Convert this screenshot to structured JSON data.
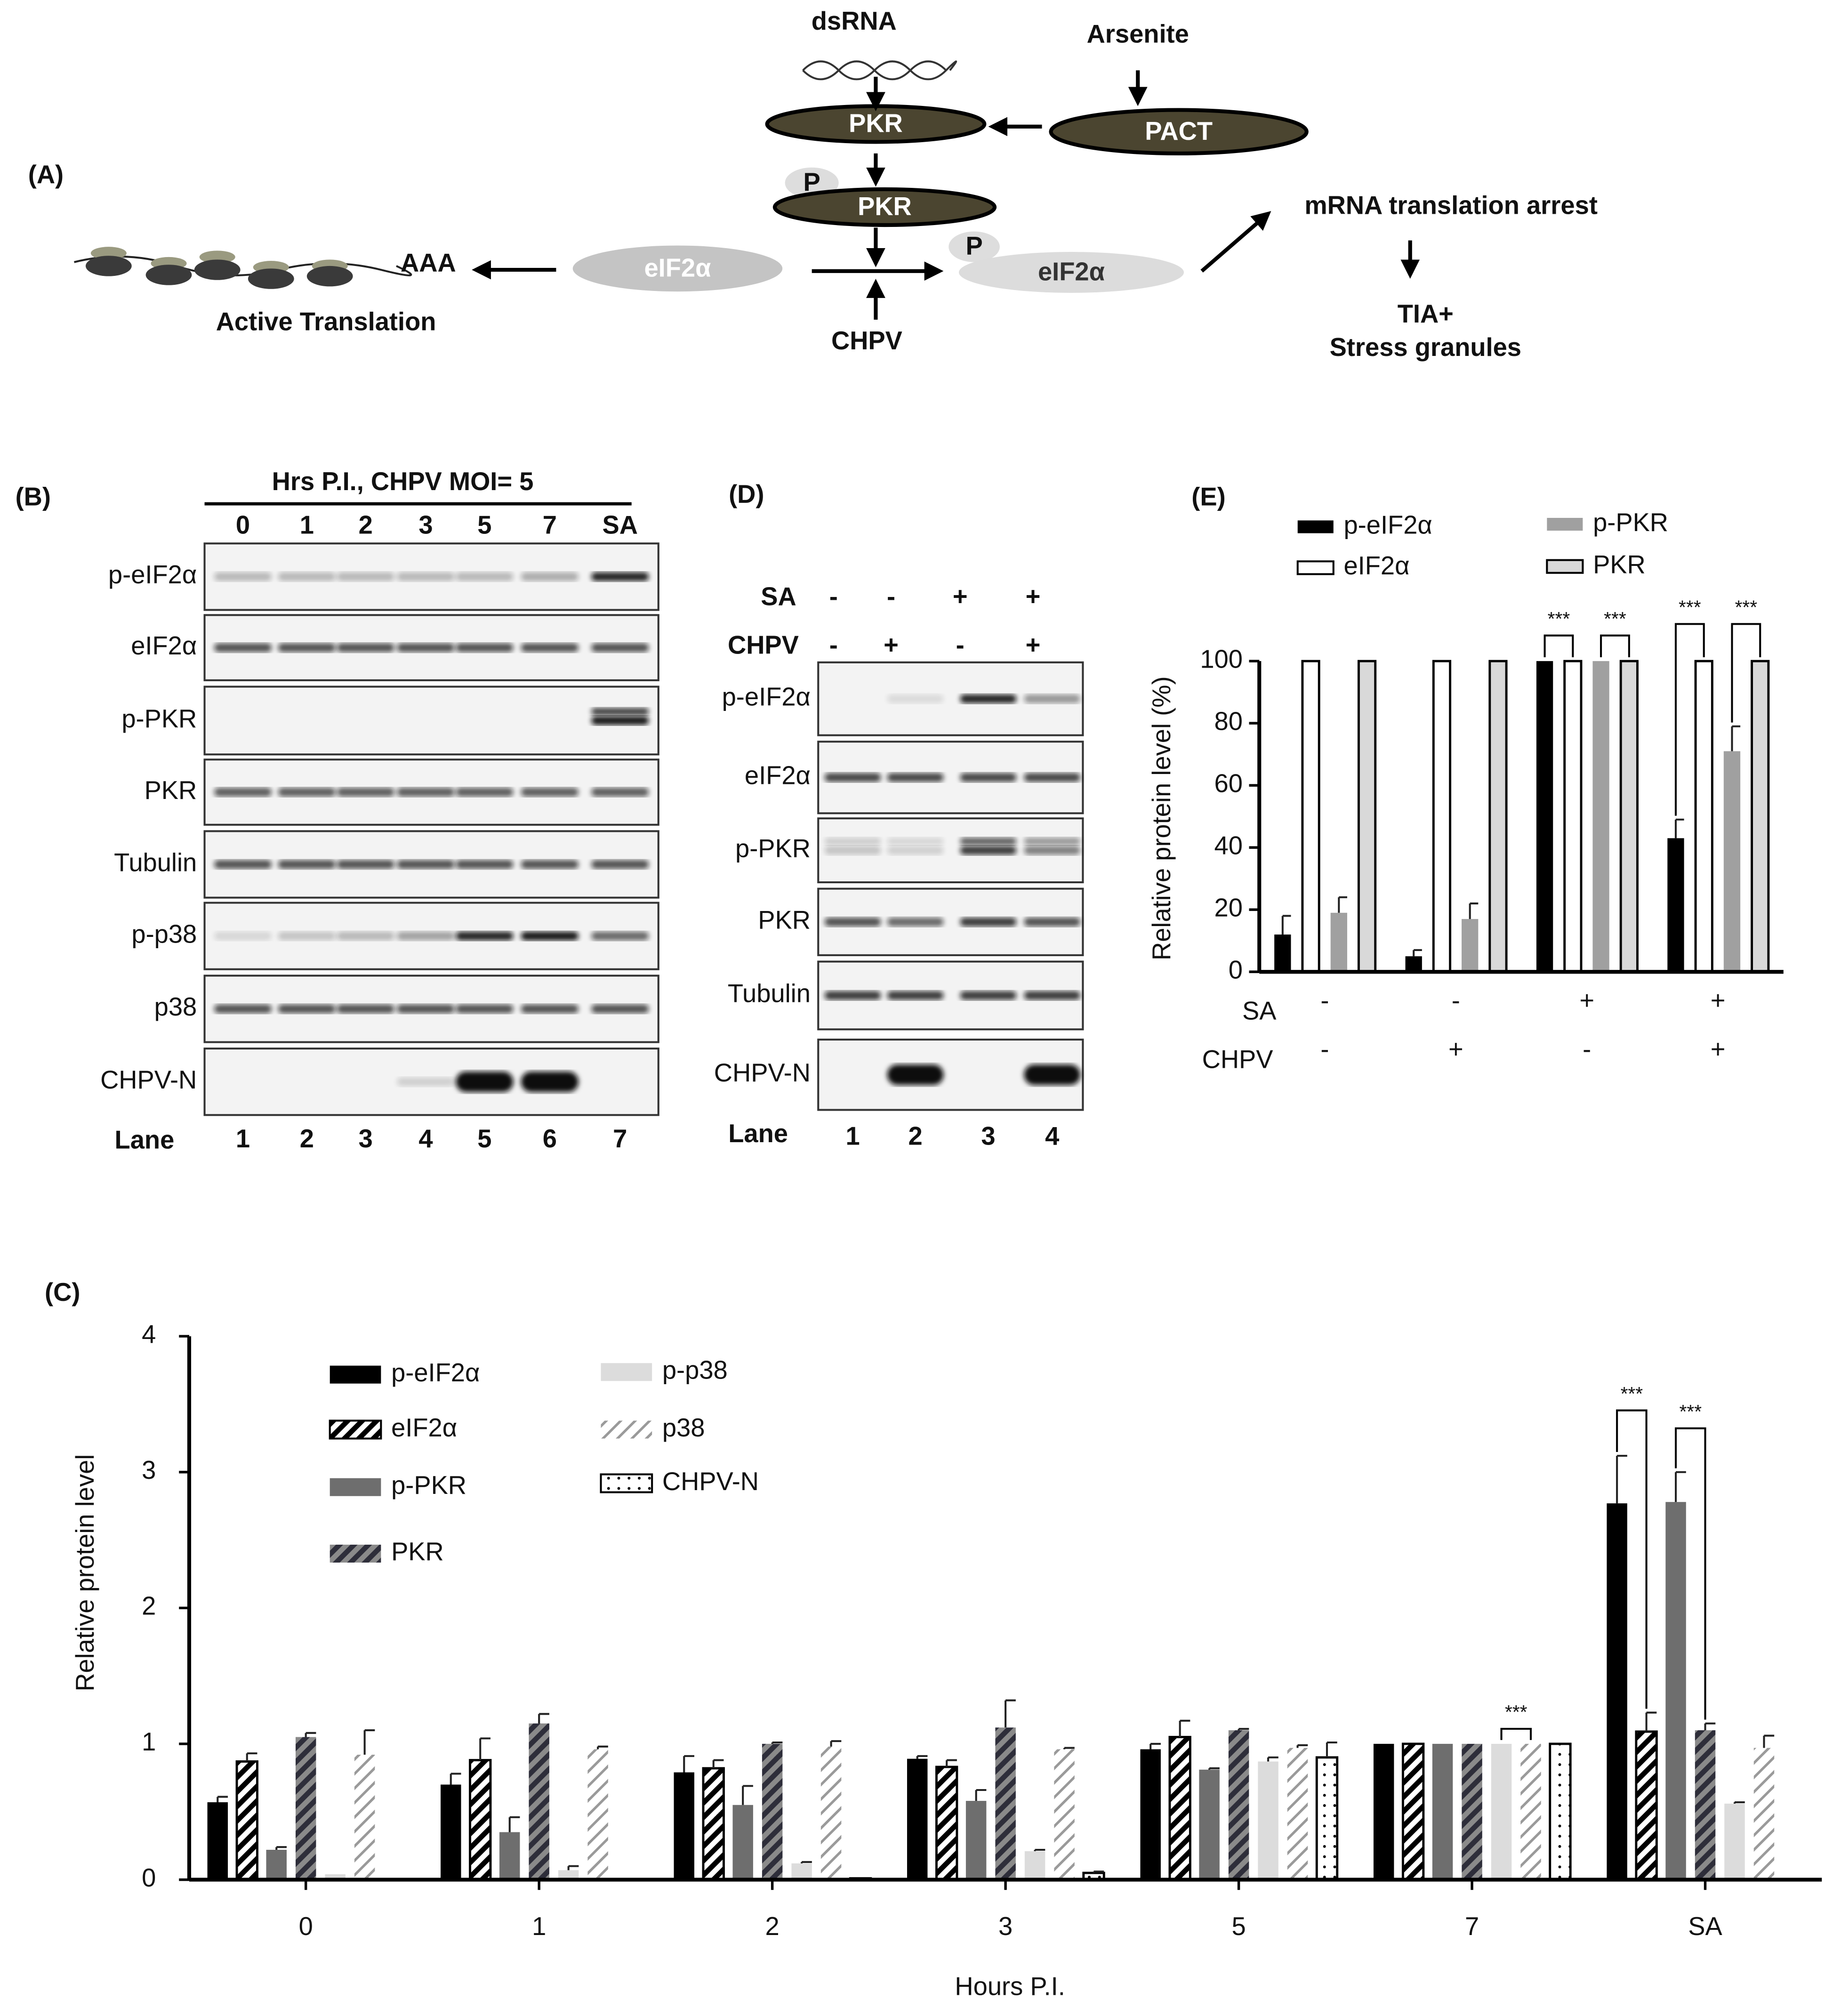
{
  "panel_a": {
    "label": "(A)",
    "dsrna": "dsRNA",
    "arsenite": "Arsenite",
    "pkr": "PKR",
    "pact": "PACT",
    "phospho": "P",
    "pkr_p": "PKR",
    "phospho_2": "P",
    "eif2a": "eIF2α",
    "eif2a_p": "eIF2α",
    "poly_a": "AAA",
    "active": "Active Translation",
    "chpv": "CHPV",
    "arrest": "mRNA translation arrest",
    "tia": "TIA+",
    "granules": "Stress granules"
  },
  "panel_b": {
    "label": "(B)",
    "header": "Hrs P.I.,  CHPV MOI= 5",
    "columns": [
      "0",
      "1",
      "2",
      "3",
      "5",
      "7",
      "SA"
    ],
    "rows": [
      "p-eIF2α",
      "eIF2α",
      "p-PKR",
      "PKR",
      "Tubulin",
      "p-p38",
      "p38",
      "CHPV-N"
    ],
    "lane_title": "Lane",
    "lanes": [
      "1",
      "2",
      "3",
      "4",
      "5",
      "6",
      "7"
    ]
  },
  "panel_d": {
    "label": "(D)",
    "treatments": [
      {
        "name": "SA",
        "signs": [
          "-",
          "-",
          "+",
          "+"
        ]
      },
      {
        "name": "CHPV",
        "signs": [
          "-",
          "+",
          "-",
          "+"
        ]
      }
    ],
    "rows": [
      "p-eIF2α",
      "eIF2α",
      "p-PKR",
      "PKR",
      "Tubulin",
      "CHPV-N"
    ],
    "lane_title": "Lane",
    "lanes": [
      "1",
      "2",
      "3",
      "4"
    ]
  },
  "chart_data": [
    {
      "type": "bar",
      "label": "(C)",
      "xlabel": "Hours P.I.",
      "ylabel": "Relative protein level",
      "categories": [
        "0",
        "1",
        "2",
        "3",
        "5",
        "7",
        "SA"
      ],
      "series": [
        {
          "name": "p-eIF2α",
          "color": "#000000",
          "values": [
            0.57,
            0.7,
            0.79,
            0.89,
            0.96,
            1.0,
            2.77
          ],
          "errors": [
            0.04,
            0.08,
            0.12,
            0.02,
            0.04,
            null,
            0.35
          ]
        },
        {
          "name": "eIF2α",
          "color": "#ffffff",
          "hatch": {
            "style": "stripes",
            "color": "#000000"
          },
          "edgecolor": "#000000",
          "values": [
            0.87,
            0.88,
            0.82,
            0.83,
            1.05,
            1.0,
            1.09
          ],
          "errors": [
            0.06,
            0.16,
            0.06,
            0.05,
            0.12,
            null,
            0.14
          ]
        },
        {
          "name": "p-PKR",
          "color": "#6e6e6e",
          "values": [
            0.22,
            0.35,
            0.55,
            0.58,
            0.81,
            1.0,
            2.78
          ],
          "errors": [
            0.02,
            0.11,
            0.14,
            0.08,
            0.01,
            null,
            0.22
          ]
        },
        {
          "name": "PKR",
          "color": "#8a8a8a",
          "hatch": {
            "style": "stripes",
            "color": "#2e2e3a"
          },
          "values": [
            1.05,
            1.15,
            1.0,
            1.12,
            1.1,
            1.0,
            1.1
          ],
          "errors": [
            0.03,
            0.07,
            0.01,
            0.2,
            0.01,
            null,
            0.05
          ]
        },
        {
          "name": "p-p38",
          "color": "#dcdcdc",
          "values": [
            0.04,
            0.07,
            0.12,
            0.21,
            0.87,
            1.0,
            0.56
          ],
          "errors": [
            null,
            0.03,
            0.01,
            0.01,
            0.03,
            null,
            0.01
          ]
        },
        {
          "name": "p38",
          "color": "#ffffff",
          "hatch": {
            "style": "lines",
            "color": "#9a9a9a"
          },
          "values": [
            0.92,
            0.96,
            0.98,
            0.96,
            0.97,
            1.0,
            0.97
          ],
          "errors": [
            0.18,
            0.02,
            0.04,
            0.01,
            0.02,
            null,
            0.09
          ]
        },
        {
          "name": "CHPV-N",
          "color": "#ffffff",
          "hatch": {
            "style": "dots",
            "color": "#000000"
          },
          "edgecolor": "#000000",
          "values": [
            0,
            0,
            0.01,
            0.05,
            0.9,
            1.0,
            null
          ],
          "errors": [
            null,
            null,
            null,
            0.01,
            0.11,
            null,
            null
          ]
        }
      ],
      "ylim": [
        0,
        4
      ],
      "yticks": [
        0,
        1,
        2,
        3,
        4
      ],
      "annotations": [
        "***",
        "***",
        "***"
      ]
    },
    {
      "type": "bar",
      "label": "(E)",
      "ylabel": "Relative protein level (%)",
      "conditions": [
        {
          "name": "SA",
          "signs": [
            "-",
            "-",
            "+",
            "+"
          ]
        },
        {
          "name": "CHPV",
          "signs": [
            "-",
            "+",
            "-",
            "+"
          ]
        }
      ],
      "series": [
        {
          "name": "p-eIF2α",
          "color": "#000000",
          "values": [
            12,
            5,
            100,
            43
          ],
          "errors": [
            6,
            2,
            null,
            6
          ]
        },
        {
          "name": "eIF2α",
          "color": "#ffffff",
          "edgecolor": "#000000",
          "values": [
            100,
            100,
            100,
            100
          ],
          "errors": [
            null,
            null,
            null,
            null
          ]
        },
        {
          "name": "p-PKR",
          "color": "#a0a0a0",
          "values": [
            19,
            17,
            100,
            71
          ],
          "errors": [
            5,
            5,
            null,
            8
          ]
        },
        {
          "name": "PKR",
          "color": "#d9d9d9",
          "edgecolor": "#000000",
          "values": [
            100,
            100,
            100,
            100
          ],
          "errors": [
            null,
            null,
            null,
            null
          ]
        }
      ],
      "ylim": [
        0,
        100
      ],
      "yticks": [
        0,
        20,
        40,
        60,
        80,
        100
      ],
      "annotations": [
        "***",
        "***",
        "***",
        "***"
      ]
    }
  ]
}
